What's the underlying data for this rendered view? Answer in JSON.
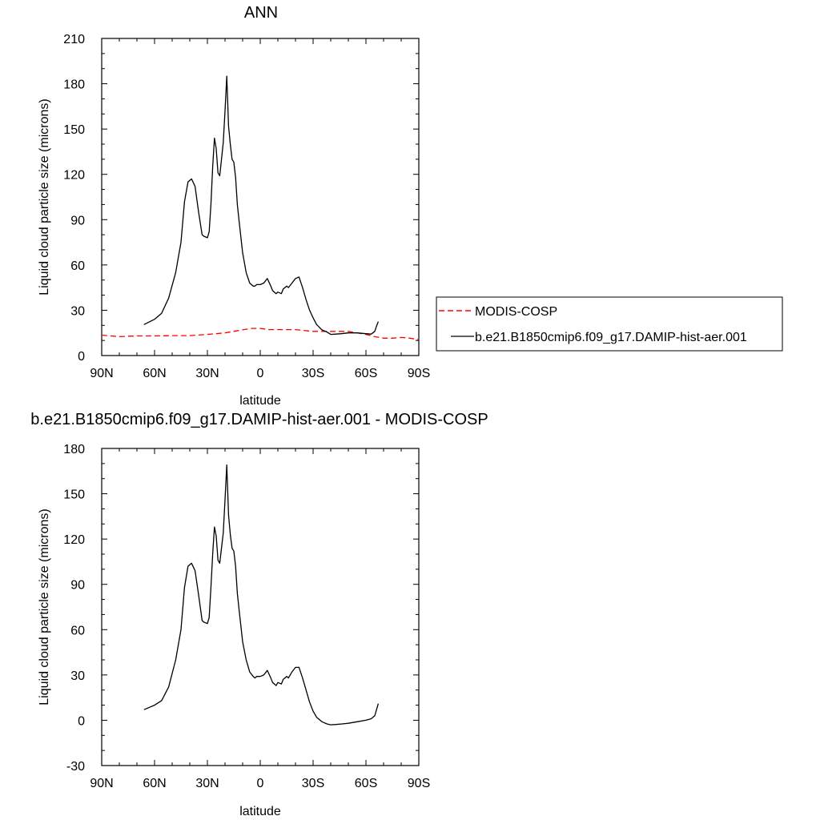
{
  "chart_data": [
    {
      "type": "line",
      "title": "ANN",
      "xlabel": "latitude",
      "ylabel": "Liquid cloud particle size (microns)",
      "xlim": [
        -90,
        90
      ],
      "ylim": [
        0,
        210
      ],
      "xticks": [
        {
          "value": -90,
          "label": "90N"
        },
        {
          "value": -60,
          "label": "60N"
        },
        {
          "value": -30,
          "label": "30N"
        },
        {
          "value": 0,
          "label": "0"
        },
        {
          "value": 30,
          "label": "30S"
        },
        {
          "value": 60,
          "label": "60S"
        },
        {
          "value": 90,
          "label": "90S"
        }
      ],
      "yticks": [
        0,
        30,
        60,
        90,
        120,
        150,
        180,
        210
      ],
      "grid": false,
      "legend_position": "right",
      "series": [
        {
          "name": "MODIS-COSP",
          "color": "#ff0000",
          "dash": true,
          "x": [
            -90,
            -85,
            -80,
            -70,
            -60,
            -50,
            -40,
            -30,
            -20,
            -15,
            -10,
            -5,
            0,
            5,
            10,
            20,
            30,
            40,
            50,
            60,
            65,
            70,
            75,
            80,
            85,
            90
          ],
          "y": [
            13.5,
            13,
            12.5,
            13,
            13,
            13.2,
            13.2,
            14,
            15,
            16,
            17,
            18,
            18,
            17.2,
            17.2,
            17.2,
            16,
            16,
            16,
            14,
            12.5,
            11.5,
            11.5,
            12,
            11.5,
            10.5
          ]
        },
        {
          "name": "b.e21.B1850cmip6.f09_g17.DAMIP-hist-aer.001",
          "color": "#000000",
          "dash": false,
          "x": [
            -66,
            -60,
            -56,
            -52,
            -48,
            -45,
            -43,
            -41,
            -39,
            -37,
            -35,
            -33,
            -32,
            -30,
            -29,
            -28,
            -27,
            -26,
            -25,
            -24,
            -23,
            -22,
            -21,
            -20,
            -19,
            -18,
            -17,
            -16,
            -15,
            -14,
            -13,
            -12,
            -10,
            -8,
            -6,
            -4,
            -3,
            -2,
            0,
            2,
            4,
            6,
            7,
            9,
            10,
            12,
            13,
            15,
            16,
            18,
            20,
            22,
            24,
            26,
            28,
            30,
            32,
            35,
            38,
            40,
            43,
            46,
            50,
            55,
            60,
            63,
            65,
            66,
            67
          ],
          "y": [
            20.5,
            24,
            28,
            38,
            55,
            75,
            102,
            115,
            117,
            112,
            95,
            80,
            79,
            78,
            82,
            100,
            125,
            144,
            137,
            121,
            119,
            130,
            141,
            162,
            185,
            152,
            140,
            130,
            128,
            118,
            100,
            89,
            68,
            55,
            48,
            46,
            46,
            47,
            47,
            48,
            51,
            46,
            43,
            41,
            42,
            41,
            44,
            46,
            45,
            48,
            51,
            52,
            45,
            37,
            30,
            25,
            20.5,
            17,
            15.5,
            14,
            14.2,
            14.5,
            15,
            15,
            14.5,
            14.2,
            16,
            19.5,
            22.5
          ]
        }
      ]
    },
    {
      "type": "line",
      "title": "b.e21.B1850cmip6.f09_g17.DAMIP-hist-aer.001 - MODIS-COSP",
      "xlabel": "latitude",
      "ylabel": "Liquid cloud particle size (microns)",
      "xlim": [
        -90,
        90
      ],
      "ylim": [
        -30,
        180
      ],
      "xticks": [
        {
          "value": -90,
          "label": "90N"
        },
        {
          "value": -60,
          "label": "60N"
        },
        {
          "value": -30,
          "label": "30N"
        },
        {
          "value": 0,
          "label": "0"
        },
        {
          "value": 30,
          "label": "30S"
        },
        {
          "value": 60,
          "label": "60S"
        },
        {
          "value": 90,
          "label": "90S"
        }
      ],
      "yticks": [
        -30,
        0,
        30,
        60,
        90,
        120,
        150,
        180
      ],
      "grid": false,
      "series": [
        {
          "color": "#000000",
          "dash": false,
          "x": [
            -66,
            -60,
            -56,
            -52,
            -48,
            -45,
            -43,
            -41,
            -39,
            -37,
            -35,
            -33,
            -32,
            -30,
            -29,
            -28,
            -27,
            -26,
            -25,
            -24,
            -23,
            -22,
            -21,
            -20,
            -19,
            -18,
            -17,
            -16,
            -15,
            -14,
            -13,
            -12,
            -10,
            -8,
            -6,
            -4,
            -3,
            -2,
            0,
            2,
            4,
            6,
            7,
            9,
            10,
            12,
            13,
            15,
            16,
            18,
            20,
            22,
            24,
            26,
            28,
            30,
            32,
            35,
            38,
            40,
            43,
            46,
            50,
            55,
            60,
            63,
            65,
            66,
            67
          ],
          "y": [
            7,
            10,
            13,
            22,
            40,
            60,
            88,
            102,
            104,
            99,
            83,
            66,
            65,
            64,
            68,
            88,
            110,
            128,
            122,
            106,
            104,
            114,
            124,
            146,
            169,
            136,
            123,
            114,
            112,
            102,
            84,
            73,
            52,
            40,
            32,
            29,
            28,
            29,
            29,
            30,
            33,
            28,
            25,
            23,
            25,
            24,
            27,
            29,
            28,
            32,
            35,
            35,
            28,
            20,
            12,
            6,
            2,
            -1,
            -2.5,
            -3,
            -2.8,
            -2.5,
            -2,
            -1,
            0,
            1,
            3,
            7,
            11
          ]
        }
      ]
    }
  ]
}
